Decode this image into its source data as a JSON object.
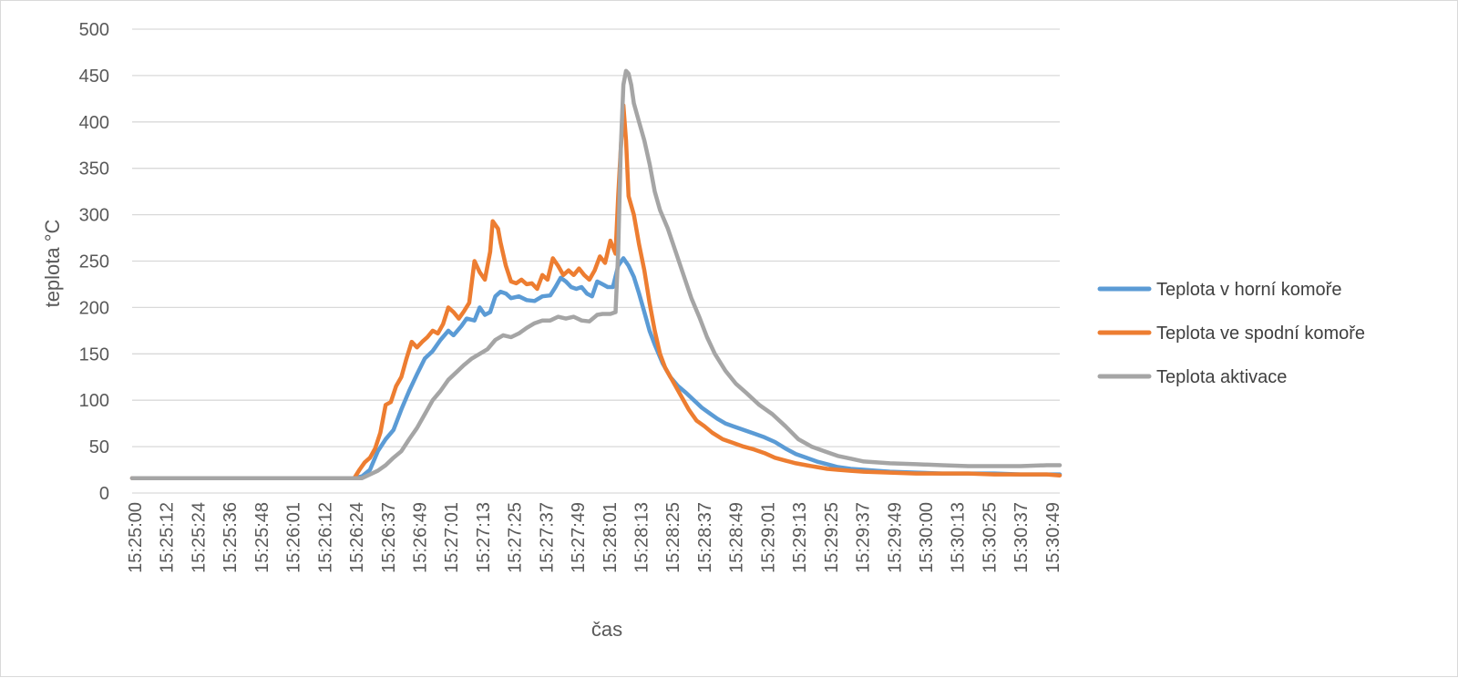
{
  "chart_data": {
    "type": "line",
    "title": "",
    "xlabel": "čas",
    "ylabel": "teplota °C",
    "ylim": [
      0,
      500
    ],
    "yticks": [
      0,
      50,
      100,
      150,
      200,
      250,
      300,
      350,
      400,
      450,
      500
    ],
    "grid": true,
    "legend_position": "right",
    "x_tick_labels": [
      "15:25:00",
      "15:25:12",
      "15:25:24",
      "15:25:36",
      "15:25:48",
      "15:26:01",
      "15:26:12",
      "15:26:24",
      "15:26:37",
      "15:26:49",
      "15:27:01",
      "15:27:13",
      "15:27:25",
      "15:27:37",
      "15:27:49",
      "15:28:01",
      "15:28:13",
      "15:28:25",
      "15:28:37",
      "15:28:49",
      "15:29:01",
      "15:29:13",
      "15:29:25",
      "15:29:37",
      "15:29:49",
      "15:30:00",
      "15:30:13",
      "15:30:25",
      "15:30:37",
      "15:30:49"
    ],
    "x_range_seconds": [
      0,
      355
    ],
    "x_unit": "seconds since 15:25:00",
    "series": [
      {
        "name": "Teplota v horní komoře",
        "color": "#5b9bd5",
        "points": [
          [
            0,
            16
          ],
          [
            30,
            16
          ],
          [
            60,
            16
          ],
          [
            85,
            16
          ],
          [
            88,
            18
          ],
          [
            91,
            25
          ],
          [
            94,
            45
          ],
          [
            97,
            58
          ],
          [
            100,
            68
          ],
          [
            103,
            90
          ],
          [
            106,
            110
          ],
          [
            109,
            128
          ],
          [
            112,
            145
          ],
          [
            115,
            153
          ],
          [
            118,
            165
          ],
          [
            121,
            175
          ],
          [
            123,
            170
          ],
          [
            126,
            180
          ],
          [
            128,
            188
          ],
          [
            131,
            186
          ],
          [
            133,
            200
          ],
          [
            135,
            192
          ],
          [
            137,
            195
          ],
          [
            139,
            212
          ],
          [
            141,
            217
          ],
          [
            143,
            215
          ],
          [
            145,
            210
          ],
          [
            148,
            212
          ],
          [
            151,
            208
          ],
          [
            154,
            207
          ],
          [
            157,
            212
          ],
          [
            160,
            213
          ],
          [
            162,
            222
          ],
          [
            164,
            232
          ],
          [
            166,
            228
          ],
          [
            168,
            222
          ],
          [
            170,
            220
          ],
          [
            172,
            222
          ],
          [
            174,
            215
          ],
          [
            176,
            212
          ],
          [
            178,
            228
          ],
          [
            180,
            225
          ],
          [
            182,
            222
          ],
          [
            184,
            222
          ],
          [
            186,
            245
          ],
          [
            188,
            253
          ],
          [
            190,
            245
          ],
          [
            192,
            233
          ],
          [
            194,
            215
          ],
          [
            196,
            195
          ],
          [
            198,
            175
          ],
          [
            200,
            160
          ],
          [
            203,
            140
          ],
          [
            206,
            125
          ],
          [
            209,
            115
          ],
          [
            212,
            108
          ],
          [
            215,
            100
          ],
          [
            218,
            92
          ],
          [
            221,
            86
          ],
          [
            224,
            80
          ],
          [
            227,
            75
          ],
          [
            230,
            72
          ],
          [
            234,
            68
          ],
          [
            238,
            64
          ],
          [
            242,
            60
          ],
          [
            246,
            55
          ],
          [
            250,
            48
          ],
          [
            254,
            42
          ],
          [
            258,
            38
          ],
          [
            262,
            34
          ],
          [
            266,
            31
          ],
          [
            270,
            28
          ],
          [
            275,
            26
          ],
          [
            280,
            25
          ],
          [
            285,
            24
          ],
          [
            290,
            23
          ],
          [
            300,
            22
          ],
          [
            310,
            21
          ],
          [
            320,
            21
          ],
          [
            330,
            21
          ],
          [
            340,
            20
          ],
          [
            350,
            20
          ],
          [
            355,
            20
          ]
        ]
      },
      {
        "name": "Teplota ve spodní komoře",
        "color": "#ed7d31",
        "points": [
          [
            0,
            16
          ],
          [
            30,
            16
          ],
          [
            60,
            16
          ],
          [
            85,
            16
          ],
          [
            87,
            25
          ],
          [
            89,
            33
          ],
          [
            91,
            38
          ],
          [
            93,
            48
          ],
          [
            95,
            65
          ],
          [
            97,
            95
          ],
          [
            99,
            98
          ],
          [
            101,
            115
          ],
          [
            103,
            125
          ],
          [
            105,
            145
          ],
          [
            107,
            163
          ],
          [
            109,
            157
          ],
          [
            111,
            163
          ],
          [
            113,
            168
          ],
          [
            115,
            175
          ],
          [
            117,
            172
          ],
          [
            119,
            182
          ],
          [
            121,
            200
          ],
          [
            123,
            195
          ],
          [
            125,
            188
          ],
          [
            127,
            196
          ],
          [
            129,
            205
          ],
          [
            131,
            250
          ],
          [
            133,
            238
          ],
          [
            135,
            230
          ],
          [
            137,
            260
          ],
          [
            138,
            293
          ],
          [
            140,
            285
          ],
          [
            141,
            270
          ],
          [
            143,
            245
          ],
          [
            145,
            228
          ],
          [
            147,
            226
          ],
          [
            149,
            230
          ],
          [
            151,
            225
          ],
          [
            153,
            226
          ],
          [
            155,
            220
          ],
          [
            157,
            235
          ],
          [
            159,
            230
          ],
          [
            161,
            253
          ],
          [
            163,
            245
          ],
          [
            165,
            235
          ],
          [
            167,
            240
          ],
          [
            169,
            235
          ],
          [
            171,
            242
          ],
          [
            173,
            235
          ],
          [
            175,
            230
          ],
          [
            177,
            240
          ],
          [
            179,
            255
          ],
          [
            181,
            248
          ],
          [
            183,
            272
          ],
          [
            185,
            258
          ],
          [
            186,
            320
          ],
          [
            187,
            370
          ],
          [
            188,
            418
          ],
          [
            189,
            380
          ],
          [
            190,
            320
          ],
          [
            192,
            300
          ],
          [
            194,
            268
          ],
          [
            196,
            240
          ],
          [
            198,
            205
          ],
          [
            200,
            175
          ],
          [
            202,
            150
          ],
          [
            204,
            135
          ],
          [
            207,
            120
          ],
          [
            210,
            105
          ],
          [
            213,
            90
          ],
          [
            216,
            78
          ],
          [
            219,
            72
          ],
          [
            222,
            65
          ],
          [
            226,
            58
          ],
          [
            230,
            54
          ],
          [
            234,
            50
          ],
          [
            238,
            47
          ],
          [
            242,
            43
          ],
          [
            246,
            38
          ],
          [
            250,
            35
          ],
          [
            254,
            32
          ],
          [
            258,
            30
          ],
          [
            262,
            28
          ],
          [
            266,
            26
          ],
          [
            270,
            25
          ],
          [
            275,
            24
          ],
          [
            280,
            23
          ],
          [
            290,
            22
          ],
          [
            300,
            21
          ],
          [
            310,
            21
          ],
          [
            320,
            21
          ],
          [
            330,
            20
          ],
          [
            340,
            20
          ],
          [
            350,
            20
          ],
          [
            355,
            19
          ]
        ]
      },
      {
        "name": "Teplota aktivace",
        "color": "#a5a5a5",
        "points": [
          [
            0,
            16
          ],
          [
            30,
            16
          ],
          [
            60,
            16
          ],
          [
            88,
            16
          ],
          [
            91,
            20
          ],
          [
            94,
            24
          ],
          [
            97,
            30
          ],
          [
            100,
            38
          ],
          [
            103,
            45
          ],
          [
            106,
            58
          ],
          [
            109,
            70
          ],
          [
            112,
            85
          ],
          [
            115,
            100
          ],
          [
            118,
            110
          ],
          [
            121,
            122
          ],
          [
            124,
            130
          ],
          [
            127,
            138
          ],
          [
            130,
            145
          ],
          [
            133,
            150
          ],
          [
            136,
            155
          ],
          [
            139,
            165
          ],
          [
            142,
            170
          ],
          [
            145,
            168
          ],
          [
            148,
            172
          ],
          [
            151,
            178
          ],
          [
            154,
            183
          ],
          [
            157,
            186
          ],
          [
            160,
            186
          ],
          [
            163,
            190
          ],
          [
            166,
            188
          ],
          [
            169,
            190
          ],
          [
            172,
            186
          ],
          [
            175,
            185
          ],
          [
            178,
            192
          ],
          [
            180,
            193
          ],
          [
            183,
            193
          ],
          [
            185,
            195
          ],
          [
            186,
            260
          ],
          [
            187,
            370
          ],
          [
            188,
            440
          ],
          [
            189,
            455
          ],
          [
            190,
            452
          ],
          [
            191,
            440
          ],
          [
            192,
            420
          ],
          [
            194,
            400
          ],
          [
            196,
            380
          ],
          [
            198,
            355
          ],
          [
            200,
            325
          ],
          [
            202,
            305
          ],
          [
            205,
            285
          ],
          [
            208,
            260
          ],
          [
            211,
            235
          ],
          [
            214,
            210
          ],
          [
            217,
            190
          ],
          [
            220,
            168
          ],
          [
            223,
            150
          ],
          [
            227,
            132
          ],
          [
            231,
            118
          ],
          [
            235,
            108
          ],
          [
            240,
            95
          ],
          [
            245,
            85
          ],
          [
            250,
            72
          ],
          [
            255,
            58
          ],
          [
            260,
            50
          ],
          [
            265,
            45
          ],
          [
            270,
            40
          ],
          [
            275,
            37
          ],
          [
            280,
            34
          ],
          [
            290,
            32
          ],
          [
            300,
            31
          ],
          [
            310,
            30
          ],
          [
            320,
            29
          ],
          [
            330,
            29
          ],
          [
            340,
            29
          ],
          [
            350,
            30
          ],
          [
            355,
            30
          ]
        ]
      }
    ]
  }
}
